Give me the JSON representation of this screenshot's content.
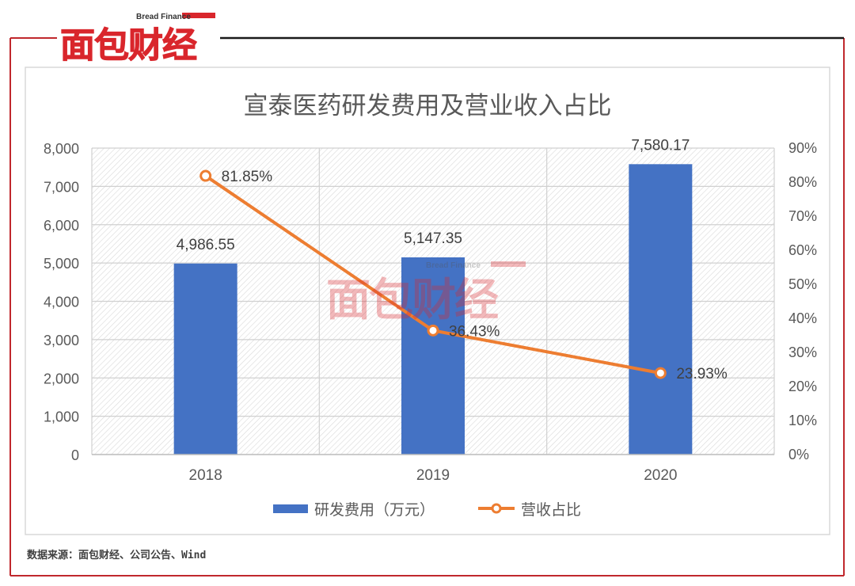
{
  "brand": {
    "logo_text": "面包财经",
    "logo_sub": "Bread Finance",
    "logo_color": "#d9262c"
  },
  "source_note": "数据来源：面包财经、公司公告、Wind",
  "chart_data": {
    "type": "bar",
    "title": "宣泰医药研发费用及营业收入占比",
    "categories": [
      "2018",
      "2019",
      "2020"
    ],
    "series": [
      {
        "name": "研发费用（万元）",
        "type": "bar",
        "axis": "left",
        "color": "#4472c4",
        "values": [
          4986.55,
          5147.35,
          7580.17
        ],
        "labels": [
          "4,986.55",
          "5,147.35",
          "7,580.17"
        ]
      },
      {
        "name": "营收占比",
        "type": "line",
        "axis": "right",
        "color": "#ed7d31",
        "values": [
          81.85,
          36.43,
          23.93
        ],
        "labels": [
          "81.85%",
          "36.43%",
          "23.93%"
        ]
      }
    ],
    "y_left": {
      "min": 0,
      "max": 8000,
      "ticks": [
        "0",
        "1,000",
        "2,000",
        "3,000",
        "4,000",
        "5,000",
        "6,000",
        "7,000",
        "8,000"
      ]
    },
    "y_right": {
      "min": 0,
      "max": 90,
      "ticks": [
        "0%",
        "10%",
        "20%",
        "30%",
        "40%",
        "50%",
        "60%",
        "70%",
        "80%",
        "90%"
      ]
    },
    "legend_position": "bottom",
    "grid": true
  }
}
